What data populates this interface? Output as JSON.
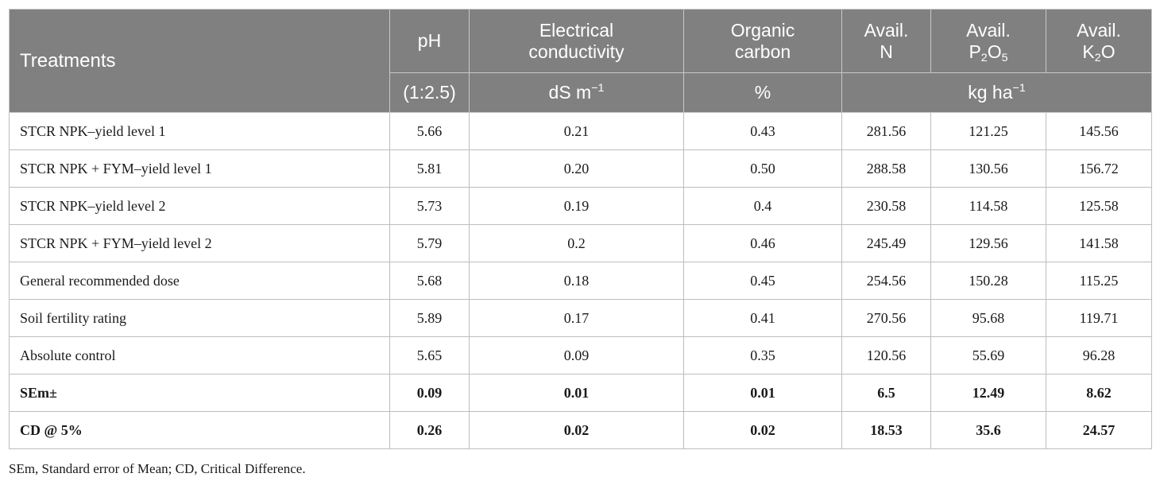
{
  "header": {
    "treatments": "Treatments",
    "ph": "pH",
    "ph_unit": "(1:2.5)",
    "ec_line1": "Electrical",
    "ec_line2": "conductivity",
    "ec_unit_base": "dS m",
    "ec_unit_exp": "−1",
    "oc_line1": "Organic",
    "oc_line2": "carbon",
    "oc_unit": "%",
    "avail": "Avail.",
    "n_label": "N",
    "p_base1": "P",
    "p_sub1": "2",
    "p_base2": "O",
    "p_sub2": "5",
    "k_base1": "K",
    "k_sub1": "2",
    "k_base2": "O",
    "npk_unit_base": "kg ha",
    "npk_unit_exp": "−1"
  },
  "rows": [
    {
      "treatment": "STCR NPK–yield level 1",
      "ph": "5.66",
      "ec": "0.21",
      "oc": "0.43",
      "n": "281.56",
      "p": "121.25",
      "k": "145.56"
    },
    {
      "treatment": "STCR NPK + FYM–yield level 1",
      "ph": "5.81",
      "ec": "0.20",
      "oc": "0.50",
      "n": "288.58",
      "p": "130.56",
      "k": "156.72"
    },
    {
      "treatment": "STCR NPK–yield level 2",
      "ph": "5.73",
      "ec": "0.19",
      "oc": "0.4",
      "n": "230.58",
      "p": "114.58",
      "k": "125.58"
    },
    {
      "treatment": "STCR NPK + FYM–yield level 2",
      "ph": "5.79",
      "ec": "0.2",
      "oc": "0.46",
      "n": "245.49",
      "p": "129.56",
      "k": "141.58"
    },
    {
      "treatment": "General recommended dose",
      "ph": "5.68",
      "ec": "0.18",
      "oc": "0.45",
      "n": "254.56",
      "p": "150.28",
      "k": "115.25"
    },
    {
      "treatment": "Soil fertility rating",
      "ph": "5.89",
      "ec": "0.17",
      "oc": "0.41",
      "n": "270.56",
      "p": "95.68",
      "k": "119.71"
    },
    {
      "treatment": "Absolute control",
      "ph": "5.65",
      "ec": "0.09",
      "oc": "0.35",
      "n": "120.56",
      "p": "55.69",
      "k": "96.28"
    },
    {
      "treatment": "SEm±",
      "ph": "0.09",
      "ec": "0.01",
      "oc": "0.01",
      "n": "6.5",
      "p": "12.49",
      "k": "8.62"
    },
    {
      "treatment": "CD @ 5%",
      "ph": "0.26",
      "ec": "0.02",
      "oc": "0.02",
      "n": "18.53",
      "p": "35.6",
      "k": "24.57"
    }
  ],
  "footnote": "SEm, Standard error of Mean; CD, Critical Difference."
}
